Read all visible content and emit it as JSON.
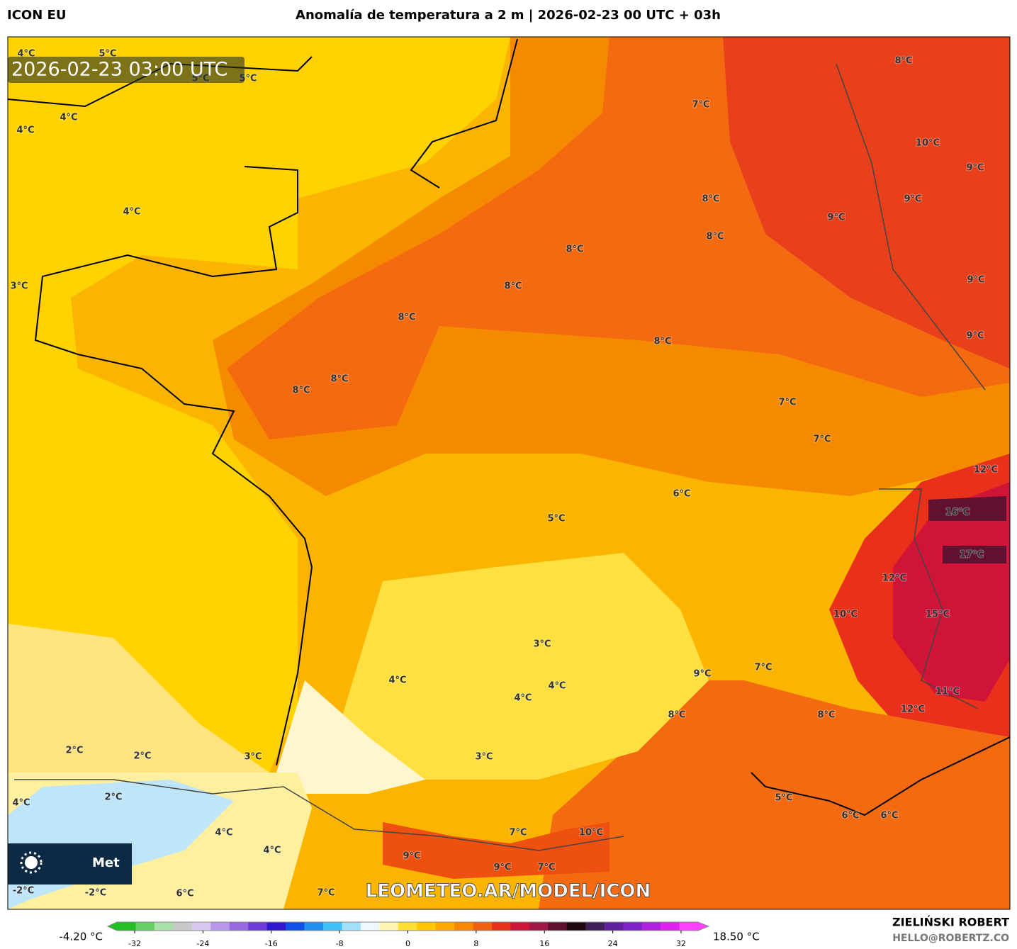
{
  "header": {
    "model": "ICON EU",
    "title": "Anomalía de temperatura a 2 m | 2026-02-23 00 UTC + 03h"
  },
  "map": {
    "timestamp": "2026-02-23 03:00 UTC",
    "watermark": "LEOMETEO.AR/MODEL/ICON",
    "logo_text": "Met",
    "labels": [
      "4°C",
      "5°C",
      "5°C",
      "5°C",
      "4°C",
      "4°C",
      "4°C",
      "3°C",
      "8°C",
      "7°C",
      "10°C",
      "9°C",
      "9°C",
      "8°C",
      "9°C",
      "8°C",
      "8°C",
      "8°C",
      "9°C",
      "8°C",
      "9°C",
      "8°C",
      "8°C",
      "8°C",
      "7°C",
      "7°C",
      "12°C",
      "6°C",
      "16°C",
      "5°C",
      "17°C",
      "12°C",
      "10°C",
      "15°C",
      "3°C",
      "9°C",
      "7°C",
      "4°C",
      "4°C",
      "4°C",
      "11°C",
      "12°C",
      "8°C",
      "8°C",
      "2°C",
      "2°C",
      "3°C",
      "3°C",
      "4°C",
      "2°C",
      "5°C",
      "6°C",
      "6°C",
      "4°C",
      "4°C",
      "7°C",
      "10°C",
      "9°C",
      "9°C",
      "7°C",
      "-2°C",
      "-2°C",
      "6°C",
      "7°C"
    ]
  },
  "colorbar": {
    "min_label": "-4.20 °C",
    "max_label": "18.50 °C",
    "range": [
      -32,
      32
    ],
    "ticks": [
      -32,
      -24,
      -16,
      -8,
      0,
      8,
      16,
      24,
      32
    ],
    "colors": [
      "#22c022",
      "#66d066",
      "#a8e0a8",
      "#c8c8c8",
      "#d8c8f0",
      "#b898e8",
      "#9868e0",
      "#7038d8",
      "#3018d0",
      "#1050e8",
      "#2090f0",
      "#40c0f8",
      "#a0e0f8",
      "#f0f8ff",
      "#fff4b0",
      "#ffe030",
      "#ffc800",
      "#ffa800",
      "#f88800",
      "#f06010",
      "#e83018",
      "#d01438",
      "#a01848",
      "#601030",
      "#200810",
      "#402058",
      "#6020a0",
      "#8020c8",
      "#b020e0",
      "#e020f0",
      "#ff40ff"
    ]
  },
  "credits": {
    "author": "ZIELIŃSKI ROBERT",
    "email": "HELLO@ROBERTZ.CO"
  }
}
